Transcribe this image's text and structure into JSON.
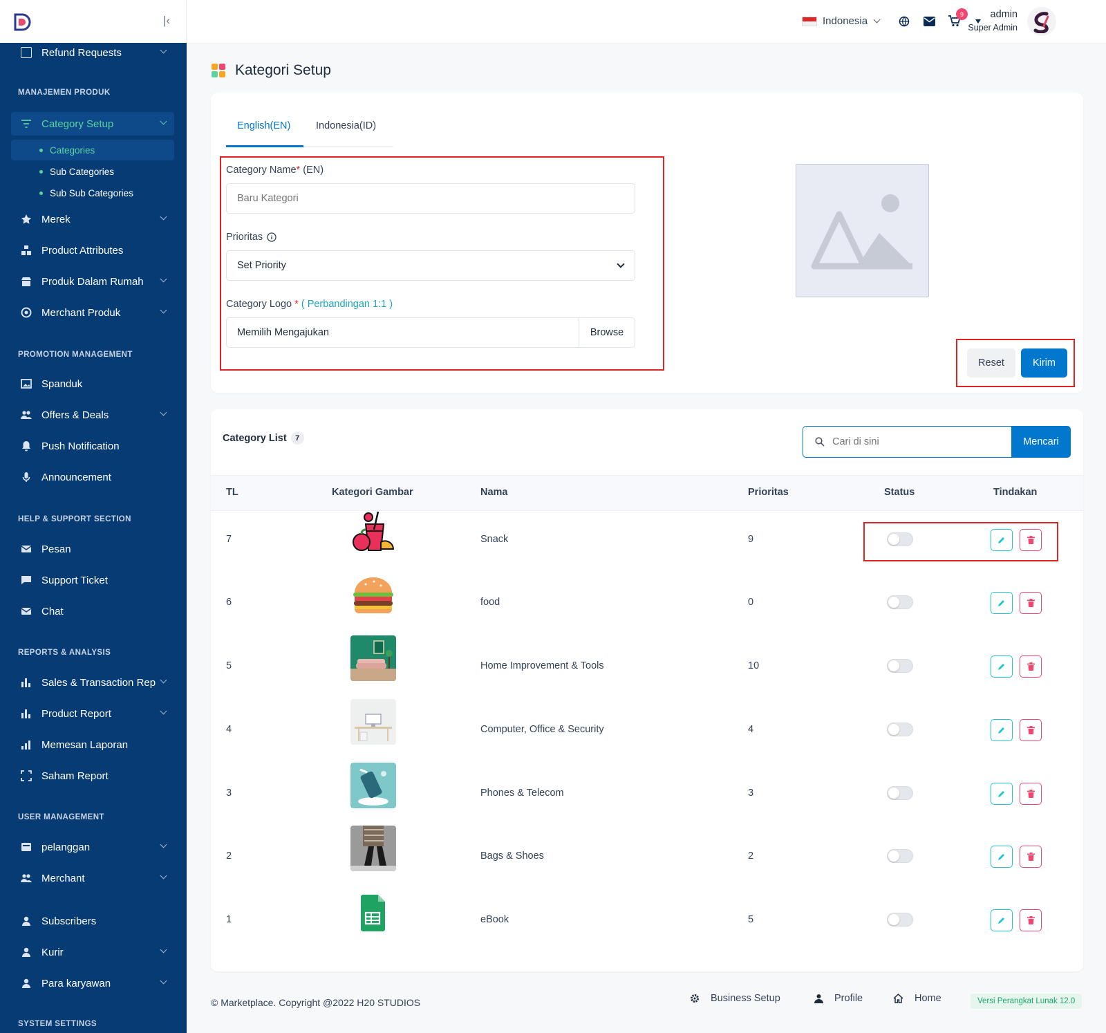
{
  "topbar": {
    "language": "Indonesia",
    "cart_count": "9",
    "user_name": "admin",
    "user_role": "Super Admin"
  },
  "sidebar": {
    "items": {
      "refund": "Refund Requests",
      "sec_product": "MANAJEMEN PRODUK",
      "category_setup": "Category Setup",
      "categories": "Categories",
      "sub_categories": "Sub Categories",
      "sub_sub_categories": "Sub Sub Categories",
      "merek": "Merek",
      "attributes": "Product Attributes",
      "inhouse": "Produk Dalam Rumah",
      "merchant_produk": "Merchant Produk",
      "sec_promo": "PROMOTION MANAGEMENT",
      "spanduk": "Spanduk",
      "offers": "Offers & Deals",
      "push": "Push Notification",
      "announcement": "Announcement",
      "sec_help": "HELP & SUPPORT SECTION",
      "pesan": "Pesan",
      "ticket": "Support Ticket",
      "chat": "Chat",
      "sec_reports": "REPORTS & ANALYSIS",
      "sales": "Sales & Transaction Rep",
      "product_report": "Product Report",
      "order_report": "Memesan Laporan",
      "stock_report": "Saham Report",
      "sec_user": "USER MANAGEMENT",
      "pelanggan": "pelanggan",
      "merchant": "Merchant",
      "subscribers": "Subscribers",
      "kurir": "Kurir",
      "karyawan": "Para karyawan",
      "sec_system": "SYSTEM SETTINGS"
    }
  },
  "page": {
    "title": "Kategori Setup"
  },
  "form": {
    "tab_en": "English(EN)",
    "tab_id": "Indonesia(ID)",
    "name_label": "Category Name",
    "name_star": "*",
    "name_suffix": "(EN)",
    "name_placeholder": "Baru Kategori",
    "priority_label": "Prioritas",
    "priority_value": "Set Priority",
    "logo_label": "Category Logo",
    "logo_star": "*",
    "logo_ratio": "( Perbandingan 1:1 )",
    "file_text": "Memilih Mengajukan",
    "browse": "Browse",
    "reset": "Reset",
    "submit": "Kirim"
  },
  "list": {
    "title": "Category List",
    "count": "7",
    "search_placeholder": "Cari di sini",
    "search_button": "Mencari",
    "headers": {
      "sl": "TL",
      "image": "Kategori Gambar",
      "name": "Nama",
      "priority": "Prioritas",
      "status": "Status",
      "action": "Tindakan"
    },
    "rows": [
      {
        "sl": "7",
        "name": "Snack",
        "priority": "9",
        "image": "drink-fruit-icon"
      },
      {
        "sl": "6",
        "name": "food",
        "priority": "0",
        "image": "burger-icon"
      },
      {
        "sl": "5",
        "name": "Home Improvement & Tools",
        "priority": "10",
        "image": "sofa-room-photo"
      },
      {
        "sl": "4",
        "name": "Computer, Office & Security",
        "priority": "4",
        "image": "desk-photo"
      },
      {
        "sl": "3",
        "name": "Phones & Telecom",
        "priority": "3",
        "image": "phone-photo"
      },
      {
        "sl": "2",
        "name": "Bags & Shoes",
        "priority": "2",
        "image": "shoes-photo"
      },
      {
        "sl": "1",
        "name": "eBook",
        "priority": "5",
        "image": "sheet-icon"
      }
    ]
  },
  "footer": {
    "copyright": "© Marketplace. Copyright @2022 H20 STUDIOS",
    "business": "Business Setup",
    "profile": "Profile",
    "home": "Home",
    "version": "Versi Perangkat Lunak 12.0"
  },
  "colors": {
    "sidebar": "#073b74",
    "accent": "#0177cd",
    "active": "#5bd3a0",
    "danger": "#ef476f"
  }
}
